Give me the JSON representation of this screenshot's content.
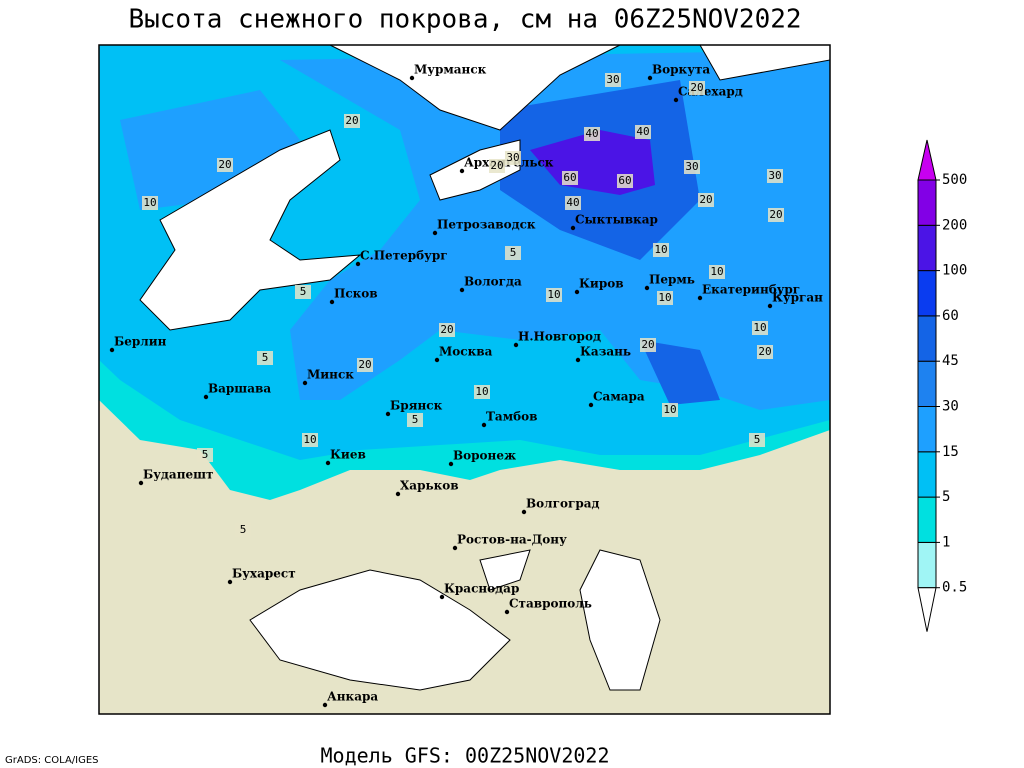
{
  "header": {
    "title": "Высота снежного покрова, см на 06Z25NOV2022"
  },
  "footer": {
    "model": "Модель GFS: 00Z25NOV2022",
    "credit": "GrADS: COLA/IGES"
  },
  "cities": [
    "Мурманск",
    "Воркута",
    "Салехард",
    "Архангельск",
    "Сыктывкар",
    "Петрозаводск",
    "С.Петербург",
    "Вологда",
    "Киров",
    "Пермь",
    "Екатеринбург",
    "Курган",
    "Псков",
    "Н.Новгород",
    "Москва",
    "Казань",
    "Берлин",
    "Варшава",
    "Минск",
    "Брянск",
    "Самара",
    "Тамбов",
    "Киев",
    "Воронеж",
    "Будапешт",
    "Харьков",
    "Волгоград",
    "Ростов-на-Дону",
    "Бухарест",
    "Краснодар",
    "Ставрополь",
    "Анкара"
  ],
  "contour_labels": [
    20,
    20,
    10,
    20,
    30,
    40,
    40,
    60,
    60,
    30,
    20,
    30,
    30,
    20,
    20,
    40,
    10,
    10,
    10,
    10,
    10,
    20,
    20,
    20,
    20,
    10,
    10,
    5,
    5,
    5,
    5,
    5,
    5,
    10,
    5
  ],
  "colorbar": {
    "levels": [
      0.5,
      1,
      5,
      15,
      30,
      45,
      60,
      100,
      200,
      500
    ],
    "colors": [
      "#ffffff",
      "#a0f5f5",
      "#00e0e0",
      "#00c0f5",
      "#1ea0ff",
      "#1e82f0",
      "#1464e6",
      "#0a3cf0",
      "#4b14e6",
      "#8200e6",
      "#c800f0"
    ]
  }
}
